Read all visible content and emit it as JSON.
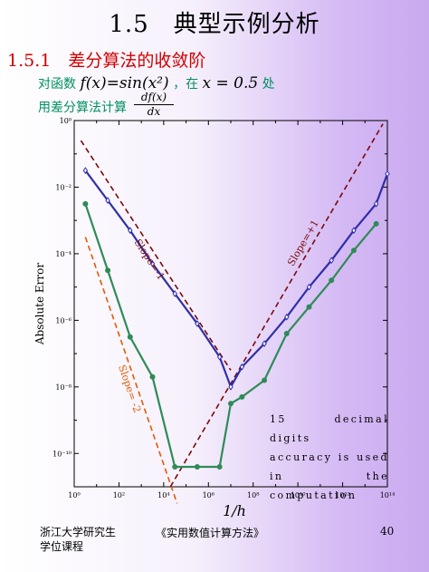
{
  "page": {
    "title": "1.5　典型示例分析",
    "subhead": "1.5.1　差分算法的收敛阶",
    "line2_pre": "对函数",
    "line2_func": "f(x)=sin(x²)",
    "line2_mid": "，在",
    "line2_point": "x = 0.5",
    "line2_post": "处",
    "line3": "用差分算法计算",
    "deriv_num": "df(x)",
    "deriv_den": "dx",
    "note_lines": [
      "15 decimal digits",
      "accuracy is used",
      "in the computation"
    ],
    "footer_left_1": "浙江大学研究生",
    "footer_left_2": "学位课程",
    "footer_mid": "《实用数值计算方法》",
    "footer_right": "40"
  },
  "chart_data": {
    "type": "line",
    "ylabel": "Absolute Error",
    "xlabel": "1/h",
    "xscale": "log",
    "yscale": "log",
    "xlim_exp": [
      0,
      14
    ],
    "ylim_exp": [
      -11,
      0
    ],
    "x_tick_labels": [
      "10⁰",
      "10²",
      "10⁴",
      "10⁶",
      "10⁸",
      "10¹⁰",
      "10¹²",
      "10¹⁴"
    ],
    "y_tick_labels": [
      "10⁰",
      "10⁻²",
      "10⁻⁴",
      "10⁻⁶",
      "10⁻⁸",
      "10⁻¹⁰"
    ],
    "series": [
      {
        "color": "#2f2fa8",
        "marker": "open-diamond",
        "log10_x": [
          0.5,
          1.5,
          2.5,
          3.5,
          4.5,
          5.5,
          6.5,
          7.0,
          7.5,
          8.5,
          9.5,
          10.5,
          11.5,
          12.5,
          13.5,
          14.0
        ],
        "log10_y": [
          -1.5,
          -2.4,
          -3.3,
          -4.3,
          -5.2,
          -6.1,
          -7.1,
          -8.0,
          -7.4,
          -6.7,
          -5.9,
          -5.0,
          -4.2,
          -3.3,
          -2.5,
          -1.6
        ]
      },
      {
        "color": "#2e8b57",
        "marker": "filled-circle",
        "log10_x": [
          0.5,
          1.5,
          2.5,
          3.5,
          4.5,
          5.5,
          6.5,
          7.0,
          7.5,
          8.5,
          9.5,
          10.5,
          11.5,
          12.5,
          13.5
        ],
        "log10_y": [
          -2.5,
          -4.5,
          -6.5,
          -7.7,
          -10.4,
          -10.4,
          -10.4,
          -8.5,
          -8.3,
          -7.8,
          -6.4,
          -5.6,
          -4.8,
          -3.9,
          -3.1
        ]
      }
    ],
    "reference_lines": [
      {
        "label": "Slope=-1",
        "color": "#7a0a0a",
        "log10_x": [
          0.3,
          7.0
        ],
        "log10_y": [
          -0.6,
          -7.5
        ]
      },
      {
        "label": "Slope= -2",
        "color": "#e25a00",
        "log10_x": [
          0.5,
          4.6
        ],
        "log10_y": [
          -3.5,
          -11.5
        ]
      },
      {
        "label": "Slope=+1",
        "color": "#7a0a0a",
        "log10_x": [
          4.3,
          13.8
        ],
        "log10_y": [
          -11.0,
          -0.1
        ]
      }
    ]
  }
}
